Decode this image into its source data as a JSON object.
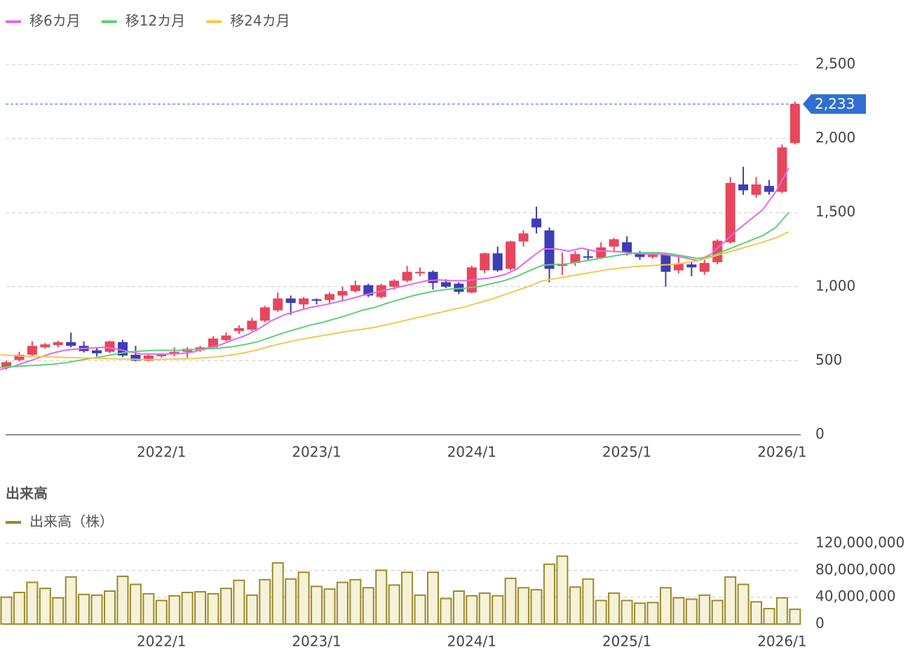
{
  "chart_data": [
    {
      "type": "candlestick",
      "categories": [
        null,
        null,
        null,
        null,
        null,
        null,
        null,
        null,
        null,
        null,
        null,
        null,
        "2022/1",
        null,
        null,
        null,
        null,
        null,
        null,
        null,
        null,
        null,
        null,
        null,
        "2023/1",
        null,
        null,
        null,
        null,
        null,
        null,
        null,
        null,
        null,
        null,
        null,
        "2024/1",
        null,
        null,
        null,
        null,
        null,
        null,
        null,
        null,
        null,
        null,
        null,
        "2025/1",
        null,
        null,
        null,
        null,
        null,
        null,
        null,
        null,
        null,
        null,
        null,
        "2026/1",
        null
      ],
      "open": [
        455,
        505,
        540,
        590,
        605,
        625,
        600,
        570,
        560,
        625,
        540,
        500,
        535,
        545,
        560,
        570,
        590,
        640,
        700,
        710,
        770,
        840,
        920,
        880,
        915,
        910,
        940,
        970,
        1010,
        930,
        1000,
        1040,
        1090,
        1100,
        1030,
        1020,
        960,
        1110,
        1225,
        1120,
        1305,
        1460,
        1380,
        1140,
        1160,
        1205,
        1195,
        1270,
        1300,
        1230,
        1200,
        1220,
        1110,
        1150,
        1100,
        1165,
        1300,
        1690,
        1620,
        1680,
        1640,
        1970
      ],
      "high": [
        500,
        560,
        630,
        620,
        635,
        690,
        630,
        585,
        635,
        640,
        600,
        545,
        550,
        590,
        590,
        600,
        665,
        690,
        740,
        790,
        870,
        960,
        940,
        930,
        920,
        960,
        1000,
        1040,
        1020,
        1020,
        1050,
        1140,
        1130,
        1110,
        1050,
        1030,
        1140,
        1230,
        1270,
        1310,
        1380,
        1540,
        1400,
        1230,
        1240,
        1250,
        1300,
        1330,
        1340,
        1240,
        1230,
        1230,
        1210,
        1170,
        1180,
        1320,
        1740,
        1810,
        1740,
        1720,
        1960,
        2250
      ],
      "low": [
        440,
        495,
        530,
        580,
        590,
        590,
        555,
        530,
        550,
        525,
        495,
        495,
        520,
        530,
        520,
        560,
        580,
        630,
        680,
        700,
        760,
        830,
        810,
        850,
        880,
        880,
        900,
        960,
        930,
        920,
        980,
        1030,
        1070,
        980,
        990,
        950,
        955,
        1090,
        1100,
        1110,
        1270,
        1360,
        1030,
        1080,
        1140,
        1180,
        1190,
        1240,
        1210,
        1180,
        1190,
        1000,
        1090,
        1070,
        1080,
        1150,
        1290,
        1620,
        1600,
        1620,
        1630,
        1960
      ],
      "close": [
        490,
        540,
        600,
        610,
        625,
        600,
        565,
        550,
        630,
        535,
        500,
        535,
        540,
        560,
        580,
        590,
        650,
        670,
        720,
        770,
        860,
        920,
        890,
        920,
        905,
        950,
        970,
        1010,
        940,
        1010,
        1040,
        1100,
        1100,
        1025,
        1000,
        965,
        1130,
        1225,
        1110,
        1305,
        1360,
        1400,
        1120,
        1150,
        1220,
        1195,
        1265,
        1320,
        1230,
        1200,
        1215,
        1100,
        1155,
        1130,
        1160,
        1310,
        1700,
        1650,
        1690,
        1640,
        1940,
        2233
      ],
      "up_color": "#e8465d",
      "down_color": "#3d3db5",
      "series": [
        {
          "name": "移6カ月",
          "color": "#e06ae8",
          "values": [
            440,
            460,
            490,
            520,
            550,
            570,
            580,
            585,
            590,
            580,
            560,
            545,
            545,
            545,
            548,
            560,
            585,
            605,
            640,
            670,
            715,
            770,
            810,
            835,
            860,
            875,
            895,
            915,
            940,
            960,
            980,
            1000,
            1020,
            1040,
            1045,
            1040,
            1040,
            1050,
            1060,
            1080,
            1120,
            1190,
            1255,
            1255,
            1240,
            1260,
            1240,
            1240,
            1235,
            1225,
            1220,
            1220,
            1210,
            1195,
            1175,
            1220,
            1300,
            1380,
            1450,
            1520,
            1640,
            1800
          ]
        },
        {
          "name": "移12カ月",
          "color": "#5fd07a",
          "values": [
            455,
            460,
            465,
            470,
            475,
            485,
            500,
            515,
            530,
            545,
            560,
            565,
            570,
            570,
            570,
            575,
            580,
            585,
            595,
            610,
            630,
            660,
            690,
            715,
            740,
            760,
            785,
            810,
            840,
            860,
            890,
            915,
            940,
            960,
            975,
            985,
            990,
            1000,
            1020,
            1040,
            1070,
            1110,
            1145,
            1150,
            1155,
            1170,
            1185,
            1200,
            1215,
            1225,
            1230,
            1230,
            1220,
            1205,
            1190,
            1205,
            1240,
            1275,
            1310,
            1345,
            1400,
            1500
          ]
        },
        {
          "name": "移24カ月",
          "color": "#f2c94c",
          "values": [
            540,
            535,
            530,
            528,
            525,
            522,
            520,
            518,
            515,
            512,
            510,
            508,
            508,
            510,
            512,
            515,
            520,
            528,
            540,
            555,
            575,
            600,
            620,
            640,
            655,
            670,
            685,
            700,
            712,
            725,
            745,
            765,
            785,
            805,
            825,
            845,
            865,
            890,
            915,
            945,
            975,
            1005,
            1040,
            1055,
            1070,
            1085,
            1100,
            1115,
            1125,
            1135,
            1140,
            1145,
            1150,
            1160,
            1175,
            1200,
            1225,
            1250,
            1275,
            1300,
            1330,
            1370
          ]
        }
      ],
      "reference_line": {
        "value": 2233,
        "label": "2,233",
        "color": "#2f6fd1"
      },
      "ylim": [
        0,
        2500
      ],
      "yticks": [
        0,
        500,
        {
          "value": 1000,
          "label": "1,000"
        },
        {
          "value": 1500,
          "label": "1,500"
        },
        {
          "value": 2000,
          "label": "2,000"
        },
        {
          "value": 2500,
          "label": "2,500"
        }
      ],
      "grid": true
    },
    {
      "type": "bar",
      "title": "出来高",
      "categories": [
        null,
        null,
        null,
        null,
        null,
        null,
        null,
        null,
        null,
        null,
        null,
        null,
        "2022/1",
        null,
        null,
        null,
        null,
        null,
        null,
        null,
        null,
        null,
        null,
        null,
        "2023/1",
        null,
        null,
        null,
        null,
        null,
        null,
        null,
        null,
        null,
        null,
        null,
        "2024/1",
        null,
        null,
        null,
        null,
        null,
        null,
        null,
        null,
        null,
        null,
        null,
        "2025/1",
        null,
        null,
        null,
        null,
        null,
        null,
        null,
        null,
        null,
        null,
        null,
        "2026/1",
        null
      ],
      "series": [
        {
          "name": "出来高（株）",
          "color": "#9b8a2b",
          "values": [
            40000000,
            47000000,
            62000000,
            53000000,
            39000000,
            70000000,
            44000000,
            43000000,
            49000000,
            71000000,
            59000000,
            45000000,
            35000000,
            42000000,
            47000000,
            48000000,
            45000000,
            53000000,
            65000000,
            43000000,
            66000000,
            91000000,
            67000000,
            77000000,
            56000000,
            52000000,
            62000000,
            66000000,
            54000000,
            80000000,
            58000000,
            77000000,
            43000000,
            77000000,
            38000000,
            49000000,
            42000000,
            46000000,
            42000000,
            68000000,
            54000000,
            51000000,
            89000000,
            101000000,
            55000000,
            67000000,
            35000000,
            46000000,
            35000000,
            31000000,
            32000000,
            54000000,
            39000000,
            37000000,
            43000000,
            35000000,
            70000000,
            59000000,
            33000000,
            23000000,
            39000000,
            22000000
          ]
        }
      ],
      "ylim": [
        0,
        120000000
      ],
      "yticks": [
        0,
        {
          "value": 40000000,
          "label": "40,000,000"
        },
        {
          "value": 80000000,
          "label": "80,000,000"
        },
        {
          "value": 120000000,
          "label": "120,000,000"
        }
      ],
      "grid": true
    }
  ]
}
